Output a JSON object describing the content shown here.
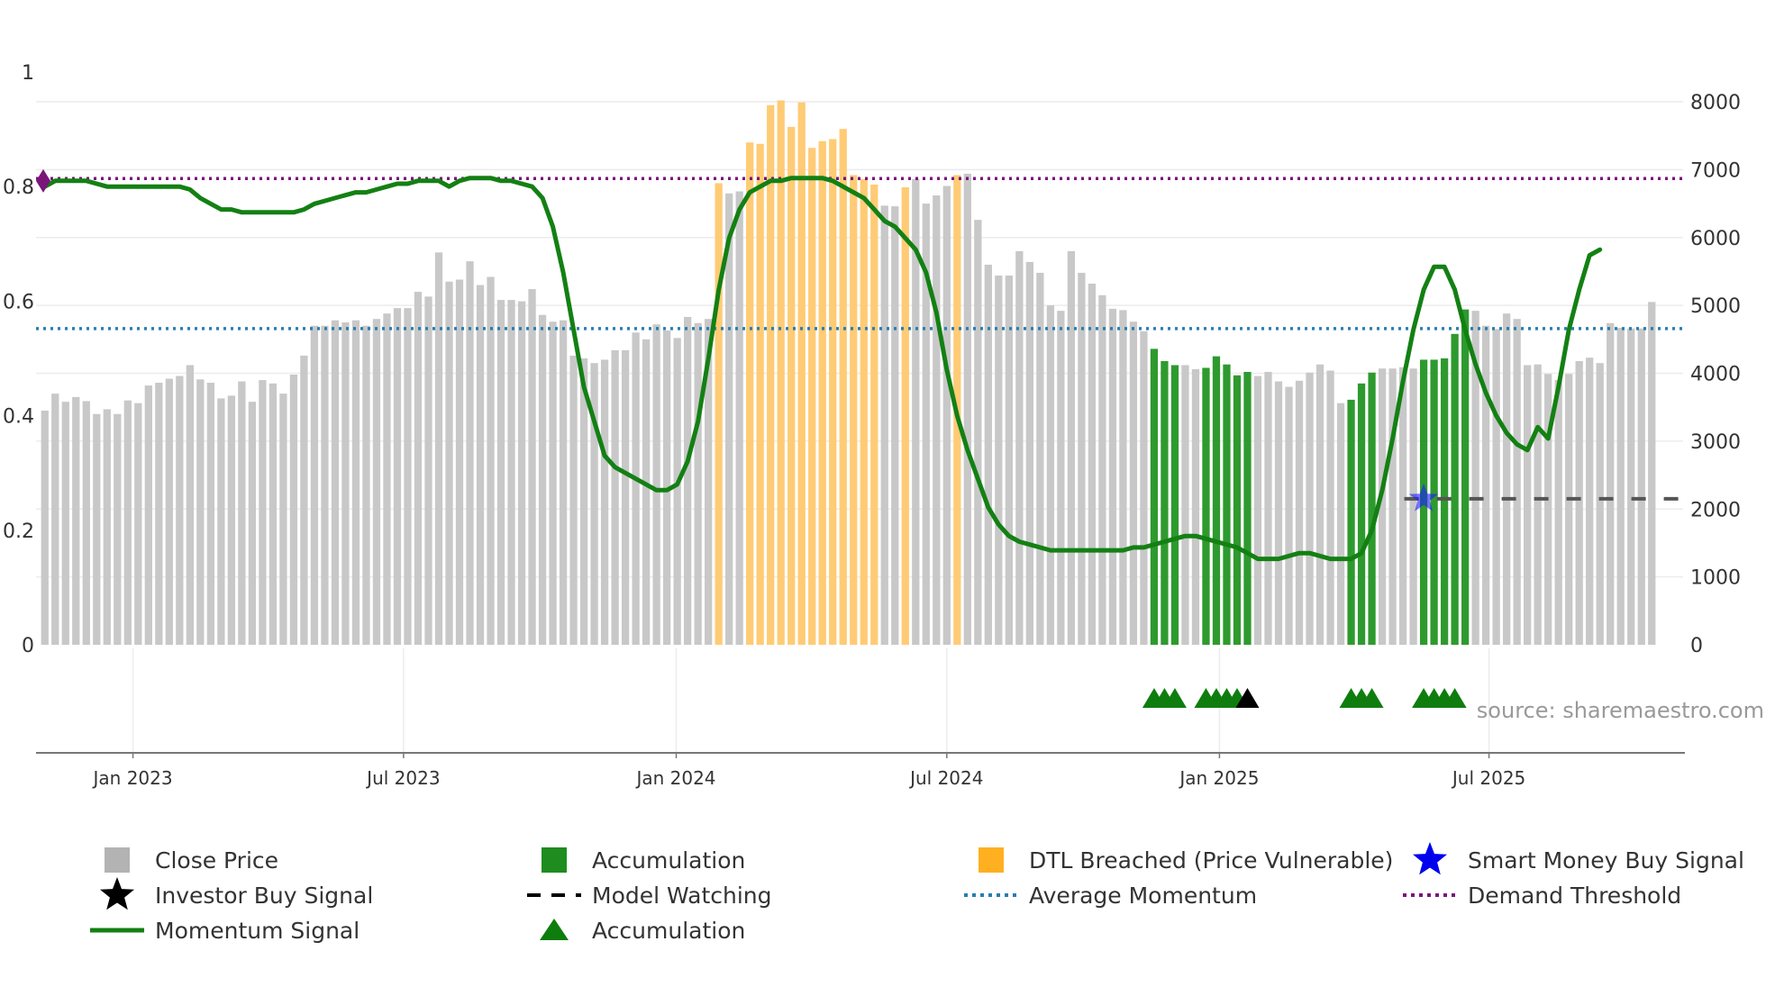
{
  "chart_data": {
    "type": "bar",
    "title": "",
    "source": "source: sharemaestro.com",
    "left_axis": {
      "ticks": [
        "0",
        "0.2",
        "0.4",
        "0.6",
        "0.8",
        "1"
      ],
      "tick_values": [
        0,
        0.2,
        0.4,
        0.6,
        0.8,
        1
      ],
      "ylim": [
        0,
        1
      ]
    },
    "right_axis": {
      "ticks": [
        "0",
        "1000",
        "2000",
        "3000",
        "4000",
        "5000",
        "6000",
        "7000",
        "8000"
      ],
      "tick_values": [
        0,
        1000,
        2000,
        3000,
        4000,
        5000,
        6000,
        7000,
        8000
      ],
      "ylim": [
        0,
        8400
      ]
    },
    "x_axis": {
      "ticks": [
        "Jan 2023",
        "Jul 2023",
        "Jan 2024",
        "Jul 2024",
        "Jan 2025",
        "Jul 2025"
      ],
      "tick_weeks": [
        8.5,
        34.6,
        60.9,
        87.0,
        113.3,
        139.3
      ],
      "n_weeks": 158
    },
    "colors": {
      "close_price": "#c8c8c8",
      "accumulation": "#2e9a2e",
      "dtl_breached": "#ffcb75",
      "momentum": "#138013",
      "average_momentum": "#2a7db0",
      "demand_threshold": "#7a167a",
      "model_watching": "#555555",
      "smart_money": "#1a1aff",
      "investor": "#000000",
      "triangle": "#0e7d0e"
    },
    "series": [
      {
        "name": "Close Price",
        "values": [
          3450,
          3700,
          3580,
          3650,
          3590,
          3400,
          3470,
          3400,
          3600,
          3560,
          3820,
          3860,
          3920,
          3960,
          4120,
          3910,
          3860,
          3630,
          3670,
          3880,
          3580,
          3900,
          3850,
          3700,
          3980,
          4260,
          4700,
          4700,
          4780,
          4750,
          4780,
          4700,
          4800,
          4880,
          4960,
          4960,
          5200,
          5130,
          5780,
          5350,
          5380,
          5650,
          5300,
          5420,
          5080,
          5080,
          5060,
          5240,
          4860,
          4760,
          4780,
          4260,
          4220,
          4150,
          4200,
          4340,
          4340,
          4600,
          4500,
          4720,
          4630,
          4520,
          4830,
          4740,
          4800,
          6800,
          6650,
          6680,
          7400,
          7380,
          7950,
          8020,
          7630,
          7990,
          7320,
          7420,
          7450,
          7600,
          6920,
          6860,
          6780,
          6470,
          6460,
          6740,
          6860,
          6500,
          6620,
          6760,
          6920,
          6940,
          6260,
          5600,
          5440,
          5440,
          5800,
          5640,
          5480,
          5000,
          4920,
          5800,
          5480,
          5320,
          5150,
          4950,
          4930,
          4760,
          4620,
          4360,
          4180,
          4120,
          4120,
          4060,
          4080,
          4250,
          4130,
          3970,
          4020,
          3960,
          4020,
          3880,
          3800,
          3890,
          4010,
          4130,
          4040,
          3560,
          3610,
          3850,
          4010,
          4070,
          4070,
          4090,
          4070,
          4200,
          4200,
          4220,
          4580,
          4940,
          4920,
          4700,
          4650,
          4880,
          4800,
          4120,
          4130,
          3990,
          3900,
          3990,
          4180,
          4230,
          4150,
          4740,
          4670,
          4660,
          4660,
          5050
        ],
        "bar_class": [
          "c",
          "c",
          "c",
          "c",
          "c",
          "c",
          "c",
          "c",
          "c",
          "c",
          "c",
          "c",
          "c",
          "c",
          "c",
          "c",
          "c",
          "c",
          "c",
          "c",
          "c",
          "c",
          "c",
          "c",
          "c",
          "c",
          "c",
          "c",
          "c",
          "c",
          "c",
          "c",
          "c",
          "c",
          "c",
          "c",
          "c",
          "c",
          "c",
          "c",
          "c",
          "c",
          "c",
          "c",
          "c",
          "c",
          "c",
          "c",
          "c",
          "c",
          "c",
          "c",
          "c",
          "c",
          "c",
          "c",
          "c",
          "c",
          "c",
          "c",
          "c",
          "c",
          "c",
          "c",
          "c",
          "o",
          "c",
          "c",
          "o",
          "o",
          "o",
          "o",
          "o",
          "o",
          "o",
          "o",
          "o",
          "o",
          "o",
          "o",
          "o",
          "c",
          "c",
          "o",
          "c",
          "c",
          "c",
          "c",
          "o",
          "c",
          "c",
          "c",
          "c",
          "c",
          "c",
          "c",
          "c",
          "c",
          "c",
          "c",
          "c",
          "c",
          "c",
          "c",
          "c",
          "c",
          "c",
          "a",
          "a",
          "a",
          "c",
          "c",
          "a",
          "a",
          "a",
          "a",
          "a",
          "c",
          "c",
          "c",
          "c",
          "c",
          "c",
          "c",
          "c",
          "c",
          "a",
          "a",
          "a",
          "c",
          "c",
          "c",
          "c",
          "a",
          "a",
          "a",
          "a",
          "a",
          "c",
          "c",
          "c",
          "c",
          "c",
          "c",
          "c",
          "c",
          "c",
          "c",
          "c",
          "c",
          "c",
          "c",
          "c",
          "c",
          "c",
          "c",
          "c",
          "c",
          "c"
        ]
      },
      {
        "name": "Momentum Signal",
        "values": [
          0.8,
          0.81,
          0.81,
          0.81,
          0.81,
          0.805,
          0.8,
          0.8,
          0.8,
          0.8,
          0.8,
          0.8,
          0.8,
          0.8,
          0.795,
          0.78,
          0.77,
          0.76,
          0.76,
          0.755,
          0.755,
          0.755,
          0.755,
          0.755,
          0.755,
          0.76,
          0.77,
          0.775,
          0.78,
          0.785,
          0.79,
          0.79,
          0.795,
          0.8,
          0.805,
          0.805,
          0.81,
          0.81,
          0.81,
          0.8,
          0.81,
          0.815,
          0.815,
          0.815,
          0.81,
          0.81,
          0.805,
          0.8,
          0.78,
          0.73,
          0.65,
          0.55,
          0.45,
          0.39,
          0.33,
          0.31,
          0.3,
          0.29,
          0.28,
          0.27,
          0.27,
          0.28,
          0.32,
          0.39,
          0.5,
          0.62,
          0.71,
          0.76,
          0.79,
          0.8,
          0.81,
          0.81,
          0.815,
          0.815,
          0.815,
          0.815,
          0.81,
          0.8,
          0.79,
          0.78,
          0.76,
          0.74,
          0.73,
          0.71,
          0.69,
          0.65,
          0.58,
          0.48,
          0.4,
          0.34,
          0.29,
          0.24,
          0.21,
          0.19,
          0.18,
          0.175,
          0.17,
          0.165,
          0.165,
          0.165,
          0.165,
          0.165,
          0.165,
          0.165,
          0.165,
          0.17,
          0.17,
          0.175,
          0.18,
          0.185,
          0.19,
          0.19,
          0.185,
          0.18,
          0.175,
          0.17,
          0.16,
          0.15,
          0.15,
          0.15,
          0.155,
          0.16,
          0.16,
          0.155,
          0.15,
          0.15,
          0.15,
          0.16,
          0.2,
          0.27,
          0.36,
          0.46,
          0.55,
          0.62,
          0.66,
          0.66,
          0.62,
          0.55,
          0.49,
          0.44,
          0.4,
          0.37,
          0.35,
          0.34,
          0.38,
          0.36,
          0.45,
          0.55,
          0.62,
          0.68,
          0.69
        ]
      },
      {
        "name": "Average Momentum",
        "values": [
          0.552
        ]
      },
      {
        "name": "Demand Threshold",
        "values": [
          0.814
        ]
      },
      {
        "name": "Model Watching",
        "start_week": 132,
        "end_week": 157,
        "values": [
          0.255
        ]
      },
      {
        "name": "Smart Money Buy Signal",
        "points": [
          {
            "week": 133,
            "value": 0.255
          }
        ]
      },
      {
        "name": "Demand Marker",
        "points": [
          {
            "week": 0,
            "value": 0.81
          }
        ]
      },
      {
        "name": "Accumulation Triangles",
        "points": [
          107,
          108,
          109,
          112,
          113,
          114,
          115,
          126,
          127,
          128,
          133,
          134,
          135,
          136
        ]
      },
      {
        "name": "Investor Buy Signal Triangles",
        "points": [
          116
        ]
      }
    ],
    "legend": [
      {
        "label": "Close Price",
        "swatch": "square",
        "color": "#b3b3b3"
      },
      {
        "label": "Accumulation",
        "swatch": "square",
        "color": "#1e8c1e"
      },
      {
        "label": "DTL Breached (Price Vulnerable)",
        "swatch": "square",
        "color": "#ffb020"
      },
      {
        "label": "Smart Money Buy Signal",
        "swatch": "star",
        "color": "#0000ee"
      },
      {
        "label": "Investor Buy Signal",
        "swatch": "star",
        "color": "#000000"
      },
      {
        "label": "Model Watching",
        "swatch": "dash",
        "color": "#000000"
      },
      {
        "label": "Average Momentum",
        "swatch": "dot",
        "color": "#2a7db0"
      },
      {
        "label": "Demand Threshold",
        "swatch": "dot",
        "color": "#7a167a"
      },
      {
        "label": "Momentum Signal",
        "swatch": "line",
        "color": "#138013"
      },
      {
        "label": "Accumulation",
        "swatch": "triangle",
        "color": "#0e7d0e"
      }
    ]
  }
}
